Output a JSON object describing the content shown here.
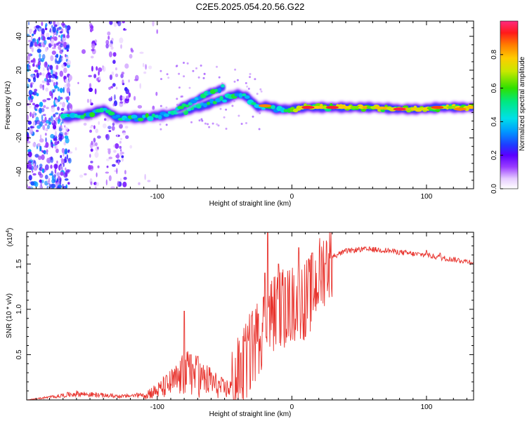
{
  "title": "C2E5.2025.054.20.56.G22",
  "chart_data": [
    {
      "type": "heatmap",
      "xlabel": "Height of straight line (km)",
      "ylabel": "Frequency (Hz)",
      "xlim": [
        -197,
        135
      ],
      "ylim": [
        -50,
        49
      ],
      "xticks": [
        -100,
        0,
        100
      ],
      "xtick_labels": [
        "-100",
        "0",
        "100"
      ],
      "yticks": [
        -40,
        -20,
        0,
        20,
        40
      ],
      "ytick_labels": [
        "-40",
        "-20",
        "0",
        "20",
        "40"
      ],
      "colorbar": {
        "label": "Normalized spectral amplitude",
        "range": [
          0,
          1
        ],
        "ticks": [
          0.0,
          0.2,
          0.4,
          0.6,
          0.8
        ],
        "tick_labels": [
          "0.0",
          "0.2",
          "0.4",
          "0.6",
          "0.8"
        ]
      },
      "ridges": [
        {
          "name": "main",
          "points": [
            [
              -170,
              -8
            ],
            [
              -150,
              -6
            ],
            [
              -140,
              -3
            ],
            [
              -130,
              -8
            ],
            [
              -110,
              -8
            ],
            [
              -90,
              -6
            ],
            [
              -70,
              -2
            ],
            [
              -50,
              3
            ],
            [
              -40,
              6
            ],
            [
              -33,
              4
            ],
            [
              -25,
              -2
            ],
            [
              -20,
              -1
            ],
            [
              -10,
              -3
            ],
            [
              0,
              -3
            ],
            [
              10,
              -2
            ],
            [
              40,
              -2
            ],
            [
              60,
              -2
            ],
            [
              80,
              -3
            ],
            [
              95,
              -3
            ],
            [
              110,
              -2
            ],
            [
              135,
              -2
            ]
          ]
        },
        {
          "name": "upper",
          "points": [
            [
              -85,
              -3
            ],
            [
              -70,
              3
            ],
            [
              -60,
              7
            ],
            [
              -50,
              10
            ]
          ]
        }
      ],
      "peaks": [
        {
          "x": 12,
          "y": -2,
          "amp": 0.95
        },
        {
          "x": 30,
          "y": -2,
          "amp": 0.95
        },
        {
          "x": 80,
          "y": -3,
          "amp": 0.96
        },
        {
          "x": 108,
          "y": -2,
          "amp": 0.9
        },
        {
          "x": -20,
          "y": -1,
          "amp": 0.85
        },
        {
          "x": 125,
          "y": -3,
          "amp": 0.85
        }
      ]
    },
    {
      "type": "line",
      "xlabel": "Height of straight line (km)",
      "ylabel": "SNR (10 * v/v)",
      "scale_label": "(x10",
      "scale_exponent": "4",
      "scale_suffix": ")",
      "xlim": [
        -197,
        135
      ],
      "ylim": [
        0,
        1.85
      ],
      "xticks": [
        -100,
        0,
        100
      ],
      "xtick_labels": [
        "-100",
        "0",
        "100"
      ],
      "yticks": [
        0.5,
        1.0,
        1.5
      ],
      "ytick_labels": [
        "0.5",
        "1.0",
        "1.5"
      ],
      "color": "#e8342e",
      "envelope": [
        [
          -197,
          0.0
        ],
        [
          -175,
          0.04
        ],
        [
          -160,
          0.07
        ],
        [
          -140,
          0.05
        ],
        [
          -125,
          0.04
        ],
        [
          -110,
          0.06
        ],
        [
          -100,
          0.1
        ],
        [
          -90,
          0.18
        ],
        [
          -85,
          0.22
        ],
        [
          -80,
          0.28
        ],
        [
          -75,
          0.3
        ],
        [
          -70,
          0.25
        ],
        [
          -65,
          0.22
        ],
        [
          -60,
          0.2
        ],
        [
          -55,
          0.15
        ],
        [
          -50,
          0.12
        ],
        [
          -45,
          0.14
        ],
        [
          -40,
          0.25
        ],
        [
          -35,
          0.4
        ],
        [
          -30,
          0.55
        ],
        [
          -25,
          0.7
        ],
        [
          -20,
          0.85
        ],
        [
          -15,
          0.95
        ],
        [
          -10,
          1.0
        ],
        [
          -5,
          1.02
        ],
        [
          0,
          1.05
        ],
        [
          5,
          1.1
        ],
        [
          10,
          1.1
        ],
        [
          15,
          1.2
        ],
        [
          20,
          1.35
        ],
        [
          25,
          1.5
        ],
        [
          30,
          1.58
        ],
        [
          40,
          1.64
        ],
        [
          50,
          1.66
        ],
        [
          60,
          1.66
        ],
        [
          70,
          1.65
        ],
        [
          80,
          1.63
        ],
        [
          90,
          1.61
        ],
        [
          100,
          1.6
        ],
        [
          110,
          1.57
        ],
        [
          120,
          1.55
        ],
        [
          135,
          1.52
        ]
      ],
      "spikes": [
        [
          -80,
          0.98
        ],
        [
          -75,
          0.5
        ],
        [
          -70,
          0.48
        ],
        [
          -60,
          0.3
        ],
        [
          -35,
          0.65
        ],
        [
          -30,
          0.93
        ],
        [
          -25,
          0.95
        ],
        [
          -20,
          1.4
        ],
        [
          -18,
          1.85
        ],
        [
          -10,
          1.5
        ],
        [
          -5,
          1.35
        ],
        [
          5,
          1.68
        ],
        [
          10,
          0.7
        ],
        [
          15,
          1.62
        ],
        [
          25,
          1.5
        ],
        [
          100,
          1.65
        ],
        [
          110,
          1.62
        ]
      ]
    }
  ]
}
